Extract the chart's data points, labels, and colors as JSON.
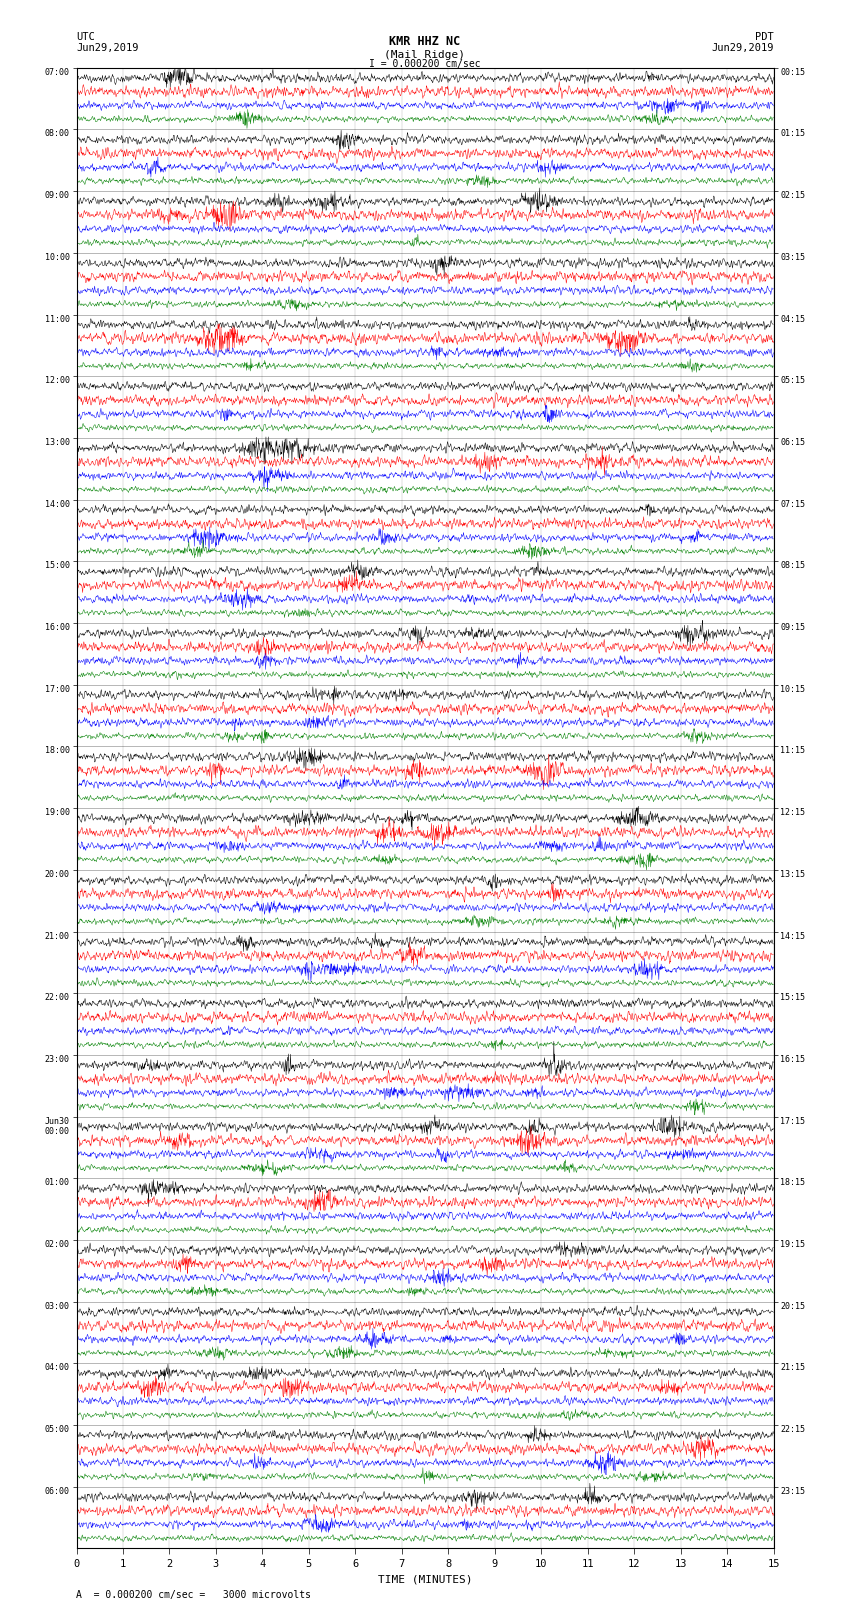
{
  "title_line1": "KMR HHZ NC",
  "title_line2": "(Mail Ridge)",
  "scale_text": "I = 0.000200 cm/sec",
  "bottom_text": "A  = 0.000200 cm/sec =   3000 microvolts",
  "left_label_line1": "UTC",
  "left_label_line2": "Jun29,2019",
  "right_label_line1": "PDT",
  "right_label_line2": "Jun29,2019",
  "xlabel": "TIME (MINUTES)",
  "utc_times": [
    "07:00",
    "08:00",
    "09:00",
    "10:00",
    "11:00",
    "12:00",
    "13:00",
    "14:00",
    "15:00",
    "16:00",
    "17:00",
    "18:00",
    "19:00",
    "20:00",
    "21:00",
    "22:00",
    "23:00",
    "Jun30\n00:00",
    "01:00",
    "02:00",
    "03:00",
    "04:00",
    "05:00",
    "06:00"
  ],
  "pdt_times": [
    "00:15",
    "01:15",
    "02:15",
    "03:15",
    "04:15",
    "05:15",
    "06:15",
    "07:15",
    "08:15",
    "09:15",
    "10:15",
    "11:15",
    "12:15",
    "13:15",
    "14:15",
    "15:15",
    "16:15",
    "17:15",
    "18:15",
    "19:15",
    "20:15",
    "21:15",
    "22:15",
    "23:15"
  ],
  "n_rows": 24,
  "traces_per_row": 4,
  "trace_colors": [
    "black",
    "red",
    "blue",
    "green"
  ],
  "bg_color": "white",
  "minutes": 15,
  "samples_per_trace": 1800,
  "trace_amplitude": 0.055,
  "noise_scale": [
    1.0,
    1.2,
    0.9,
    0.7
  ],
  "tick_interval": 1
}
